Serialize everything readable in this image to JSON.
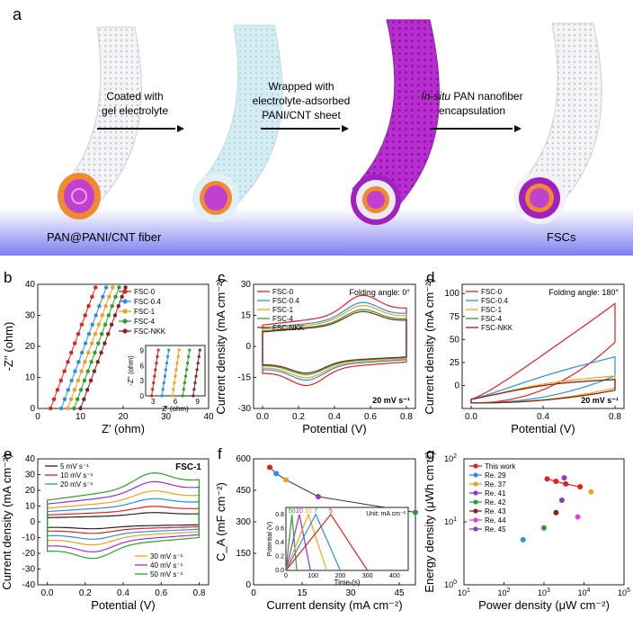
{
  "panel_a": {
    "label": "a",
    "step1": [
      "Coated with",
      "gel electrolyte"
    ],
    "step2": [
      "Wrapped with",
      "electrolyte-adsorbed",
      "PANI/CNT sheet"
    ],
    "step3_italic": "In-situ",
    "step3": [
      " PAN nanofiber",
      "encapsulation"
    ],
    "left_caption": "PAN@PANI/CNT fiber",
    "right_caption": "FSCs"
  },
  "chart_data": [
    {
      "id": "b",
      "type": "line",
      "label": "b",
      "xlabel": "Z′ (ohm)",
      "ylabel": "-Z′′ (ohm)",
      "xlim": [
        0,
        40
      ],
      "ylim": [
        0,
        40
      ],
      "xticks": [
        0,
        10,
        20,
        30,
        40
      ],
      "yticks": [
        0,
        10,
        20,
        30,
        40
      ],
      "series": [
        {
          "name": "FSC-0",
          "color": "#e02020",
          "x0": 3.0
        },
        {
          "name": "FSC-0.4",
          "color": "#2a8fe0",
          "x0": 5.5
        },
        {
          "name": "FSC-1",
          "color": "#f0a020",
          "x0": 7.0
        },
        {
          "name": "FSC-4",
          "color": "#2aa02a",
          "x0": 8.5
        },
        {
          "name": "FSC-NKK",
          "color": "#8b2020",
          "x0": 10.0
        }
      ],
      "inset": {
        "xlabel": "Z′ (ohm)",
        "ylabel": "-Z′′ (ohm)",
        "xticks": [
          3,
          6,
          9
        ],
        "yticks": [
          0,
          3,
          6,
          9
        ]
      }
    },
    {
      "id": "c",
      "type": "line",
      "label": "c",
      "annotation": "Folding angle: 0°",
      "scan_rate": "20 mV s⁻¹",
      "xlabel": "Potential (V)",
      "ylabel": "Current density (mA cm⁻²)",
      "xlim": [
        -0.05,
        0.85
      ],
      "ylim": [
        -30,
        30
      ],
      "xticks": [
        0.0,
        0.2,
        0.4,
        0.6,
        0.8
      ],
      "yticks": [
        -30,
        -15,
        0,
        15,
        30
      ],
      "series": [
        {
          "name": "FSC-0",
          "color": "#e02020",
          "amp": 1.0
        },
        {
          "name": "FSC-0.4",
          "color": "#2a8fe0",
          "amp": 0.86
        },
        {
          "name": "FSC-1",
          "color": "#f0a020",
          "amp": 0.8
        },
        {
          "name": "FSC-4",
          "color": "#2aa02a",
          "amp": 0.72
        },
        {
          "name": "FSC-NKK",
          "color": "#8b2020",
          "amp": 0.68
        }
      ]
    },
    {
      "id": "d",
      "type": "line",
      "label": "d",
      "annotation": "Folding angle: 180°",
      "scan_rate": "20 mV s⁻¹",
      "xlabel": "Potential (V)",
      "ylabel": "Current density (mA cm⁻²)",
      "xlim": [
        -0.05,
        0.85
      ],
      "ylim": [
        -25,
        110
      ],
      "xticks": [
        0.0,
        0.4,
        0.8
      ],
      "yticks": [
        0,
        25,
        50,
        75,
        100
      ],
      "series": [
        {
          "name": "FSC-0",
          "color": "#e02020",
          "top": 95
        },
        {
          "name": "FSC-0.4",
          "color": "#2a8fe0",
          "top": 34
        },
        {
          "name": "FSC-1",
          "color": "#f0a020",
          "top": 12
        },
        {
          "name": "FSC-4",
          "color": "#2aa02a",
          "top": 8
        },
        {
          "name": "FSC-NKK",
          "color": "#8b2020",
          "top": 8
        }
      ]
    },
    {
      "id": "e",
      "type": "line",
      "label": "e",
      "annotation": "FSC-1",
      "xlabel": "Potential (V)",
      "ylabel": "Current density (mA cm⁻²)",
      "xlim": [
        -0.05,
        0.85
      ],
      "ylim": [
        -40,
        40
      ],
      "xticks": [
        0.0,
        0.2,
        0.4,
        0.6,
        0.8
      ],
      "yticks": [
        -40,
        -30,
        -20,
        -10,
        0,
        10,
        20,
        30,
        40
      ],
      "series": [
        {
          "name": "5 mV s⁻¹",
          "color": "#222222",
          "amp": 0.18
        },
        {
          "name": "10 mV s⁻¹",
          "color": "#e02020",
          "amp": 0.3
        },
        {
          "name": "20 mV s⁻¹",
          "color": "#2a8fe0",
          "amp": 0.45
        },
        {
          "name": "30 mV s⁻¹",
          "color": "#f0a020",
          "amp": 0.6
        },
        {
          "name": "40 mV s⁻¹",
          "color": "#9b30d0",
          "amp": 0.78
        },
        {
          "name": "50 mV s⁻¹",
          "color": "#2aa02a",
          "amp": 0.95
        }
      ]
    },
    {
      "id": "f",
      "type": "line",
      "label": "f",
      "xlabel": "Current density (mA cm⁻²)",
      "ylabel": "C_A (mF cm⁻²)",
      "xlim": [
        0,
        50
      ],
      "ylim": [
        0,
        600
      ],
      "xticks": [
        0,
        15,
        30,
        45
      ],
      "yticks": [
        0,
        150,
        300,
        450,
        600
      ],
      "x": [
        5,
        7,
        10,
        20,
        50
      ],
      "y": [
        560,
        530,
        500,
        420,
        345
      ],
      "point_colors": [
        "#e02020",
        "#2a8fe0",
        "#f0a020",
        "#9b30d0",
        "#2aa02a"
      ],
      "inset": {
        "xlabel": "Time (s)",
        "ylabel": "Potential (V)",
        "unit_note": "Unit: mA cm⁻²",
        "xticks": [
          0,
          100,
          200,
          300,
          400
        ],
        "yticks": [
          0.0,
          0.2,
          0.4,
          0.6,
          0.8
        ],
        "curve_labels": [
          "50",
          "20",
          "10",
          "7",
          "5"
        ],
        "durations": [
          40,
          90,
          150,
          200,
          300
        ],
        "colors": [
          "#2aa02a",
          "#9b30d0",
          "#f0a020",
          "#2a8fe0",
          "#e02020"
        ]
      }
    },
    {
      "id": "g",
      "type": "scatter",
      "label": "g",
      "xlabel": "Power density (μW cm⁻²)",
      "ylabel": "Energy density (μWh cm⁻²)",
      "xscale": "log",
      "yscale": "log",
      "xlim": [
        10,
        100000
      ],
      "ylim": [
        1,
        100
      ],
      "series": [
        {
          "name": "This work",
          "color": "#e02020",
          "x": [
            1200,
            2000,
            3500,
            8000
          ],
          "y": [
            48,
            44,
            40,
            36
          ]
        },
        {
          "name": "Re. 29",
          "color": "#2a8fe0",
          "x": [
            300
          ],
          "y": [
            5.2
          ]
        },
        {
          "name": "Re. 37",
          "color": "#f0a020",
          "x": [
            15000
          ],
          "y": [
            30
          ]
        },
        {
          "name": "Re. 41",
          "color": "#9b30d0",
          "x": [
            3200
          ],
          "y": [
            50
          ]
        },
        {
          "name": "Re. 42",
          "color": "#2aa02a",
          "x": [
            1000
          ],
          "y": [
            8
          ]
        },
        {
          "name": "Re. 43",
          "color": "#8b2020",
          "x": [
            2000
          ],
          "y": [
            14
          ]
        },
        {
          "name": "Re. 44",
          "color": "#e040e0",
          "x": [
            7000
          ],
          "y": [
            12
          ]
        },
        {
          "name": "Re. 45",
          "color": "#8040c0",
          "x": [
            2800
          ],
          "y": [
            22
          ]
        }
      ]
    }
  ]
}
